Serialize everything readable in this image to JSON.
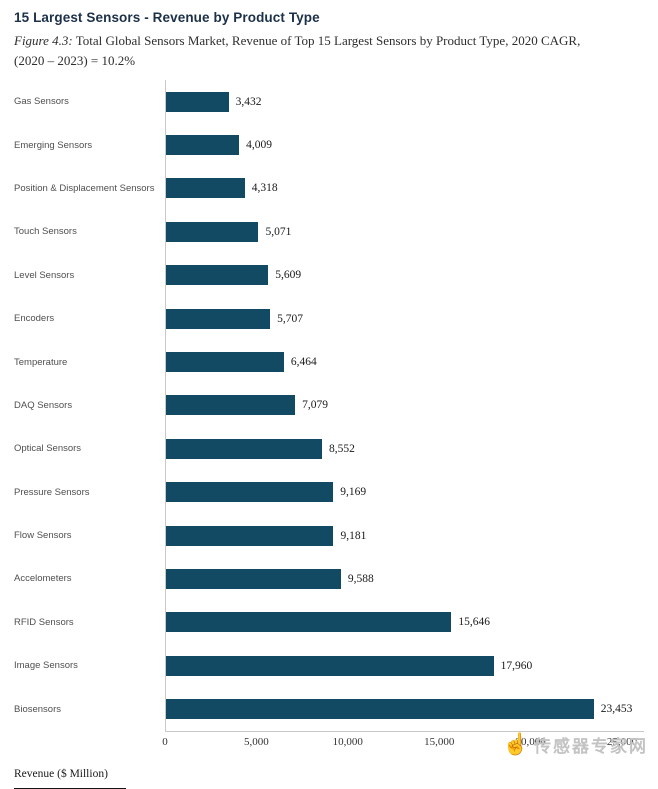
{
  "header": {
    "title": "15 Largest Sensors - Revenue by Product Type",
    "caption_prefix": "Figure 4.3:",
    "caption_line1": " Total Global Sensors Market, Revenue of Top 15 Largest Sensors by Product Type, 2020  CAGR,",
    "caption_line2": "(2020 – 2023) = 10.2%"
  },
  "chart_data": {
    "type": "bar",
    "orientation": "horizontal",
    "title": "15 Largest Sensors - Revenue by Product Type",
    "categories": [
      "Gas Sensors",
      "Emerging Sensors",
      "Position & Displacement Sensors",
      "Touch Sensors",
      "Level Sensors",
      "Encoders",
      "Temperature",
      "DAQ Sensors",
      "Optical Sensors",
      "Pressure Sensors",
      "Flow Sensors",
      "Accelometers",
      "RFID Sensors",
      "Image Sensors",
      "Biosensors"
    ],
    "values": [
      3432,
      4009,
      4318,
      5071,
      5609,
      5707,
      6464,
      7079,
      8552,
      9169,
      9181,
      9588,
      15646,
      17960,
      23453
    ],
    "value_labels": [
      "3,432",
      "4,009",
      "4,318",
      "5,071",
      "5,609",
      "5,707",
      "6,464",
      "7,079",
      "8,552",
      "9,169",
      "9,181",
      "9,588",
      "15,646",
      "17,960",
      "23,453"
    ],
    "xlabel": "Revenue ($ Million)",
    "xlim": [
      0,
      25000
    ],
    "xticks": [
      0,
      5000,
      10000,
      15000,
      20000,
      25000
    ],
    "xtick_labels": [
      "0",
      "5,000",
      "10,000",
      "15,000",
      "20,000",
      "25,000"
    ],
    "bar_color": "#134a63",
    "grid": false,
    "legend": false
  },
  "footer": {
    "xlabel": "Revenue ($ Million)"
  },
  "watermark": {
    "text": "传感器专家网",
    "hand_icon_glyph": "☝"
  }
}
